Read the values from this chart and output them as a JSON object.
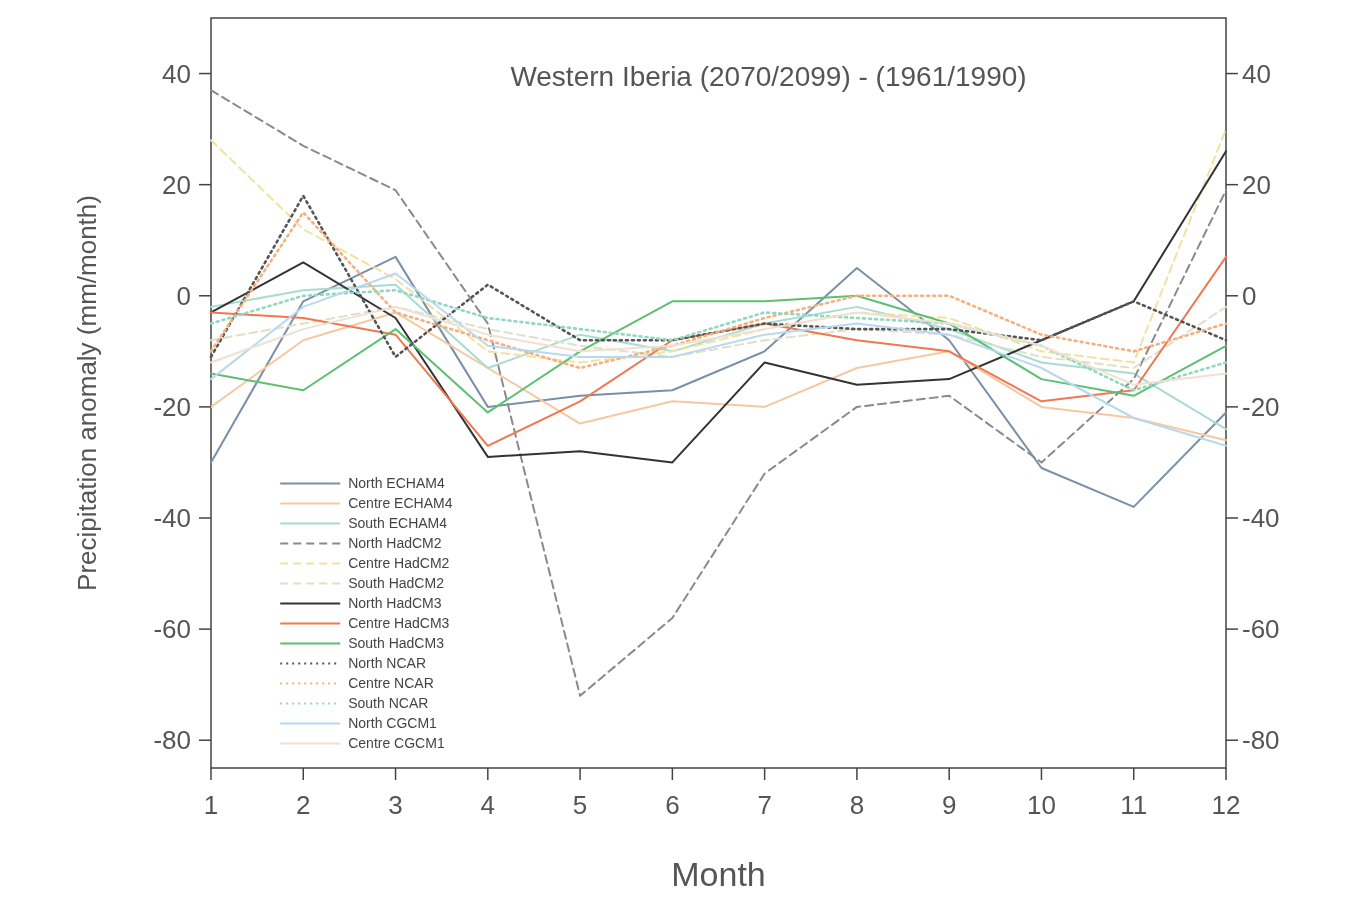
{
  "chart_data": {
    "type": "line",
    "title": "Western Iberia (2070/2099) - (1961/1990)",
    "xlabel": "Month",
    "ylabel": "Precipitation anomaly (mm/month)",
    "x": [
      1,
      2,
      3,
      4,
      5,
      6,
      7,
      8,
      9,
      10,
      11,
      12
    ],
    "xlim": [
      1,
      12
    ],
    "xticks": [
      1,
      2,
      3,
      4,
      5,
      6,
      7,
      8,
      9,
      10,
      11,
      12
    ],
    "ylim": [
      -85,
      50
    ],
    "yticks": [
      -80,
      -60,
      -40,
      -20,
      0,
      20,
      40
    ],
    "y2lim": [
      -85,
      50
    ],
    "y2ticks": [
      -80,
      -60,
      -40,
      -20,
      0,
      20,
      40
    ],
    "grid": false,
    "legend": "bottom left",
    "marker": "none",
    "series": [
      {
        "name": "North ECHAM4",
        "color": "#7a8fa8",
        "line_style": "solid",
        "values": [
          -30,
          -1,
          7,
          -20,
          -18,
          -17,
          -10,
          5,
          -8,
          -31,
          -38,
          -21
        ]
      },
      {
        "name": "Centre ECHAM4",
        "color": "#f5c9a0",
        "line_style": "solid",
        "values": [
          -20,
          -8,
          -3,
          -13,
          -23,
          -19,
          -20,
          -13,
          -10,
          -20,
          -22,
          -26
        ]
      },
      {
        "name": "South ECHAM4",
        "color": "#a8dcd0",
        "line_style": "solid",
        "values": [
          -2,
          1,
          2,
          -13,
          -7,
          -10,
          -5,
          -2,
          -6,
          -12,
          -14,
          -24
        ]
      },
      {
        "name": "North HadCM2",
        "color": "#8a8a8a",
        "line_style": "dashed",
        "values": [
          37,
          27,
          19,
          -5,
          -72,
          -58,
          -32,
          -20,
          -18,
          -30,
          -15,
          19
        ]
      },
      {
        "name": "Centre HadCM2",
        "color": "#efe3a0",
        "line_style": "dashed",
        "values": [
          28,
          12,
          3,
          -10,
          -12,
          -10,
          -6,
          -3,
          -4,
          -10,
          -12,
          30
        ]
      },
      {
        "name": "South HadCM2",
        "color": "#e0e0c8",
        "line_style": "dashed",
        "values": [
          -8,
          -5,
          -2,
          -6,
          -9,
          -11,
          -8,
          -6,
          -7,
          -11,
          -13,
          -2
        ]
      },
      {
        "name": "North HadCM3",
        "color": "#333333",
        "line_style": "solid",
        "values": [
          -3,
          6,
          -4,
          -29,
          -28,
          -30,
          -12,
          -16,
          -15,
          -8,
          -1,
          26
        ]
      },
      {
        "name": "Centre HadCM3",
        "color": "#f07850",
        "line_style": "solid",
        "values": [
          -3,
          -4,
          -7,
          -27,
          -19,
          -8,
          -5,
          -8,
          -10,
          -19,
          -17,
          7
        ]
      },
      {
        "name": "South HadCM3",
        "color": "#5cc070",
        "line_style": "solid",
        "values": [
          -14,
          -17,
          -6,
          -21,
          -10,
          -1,
          -1,
          0,
          -5,
          -15,
          -18,
          -9
        ]
      },
      {
        "name": "North NCAR",
        "color": "#555555",
        "line_style": "dotted",
        "values": [
          -11,
          18,
          -11,
          2,
          -8,
          -8,
          -5,
          -6,
          -6,
          -8,
          -1,
          -8
        ]
      },
      {
        "name": "Centre NCAR",
        "color": "#f5b080",
        "line_style": "dotted",
        "values": [
          -10,
          15,
          -3,
          -8,
          -13,
          -9,
          -4,
          0,
          0,
          -7,
          -10,
          -5
        ]
      },
      {
        "name": "South NCAR",
        "color": "#90d8c0",
        "line_style": "dotted",
        "values": [
          -5,
          0,
          1,
          -4,
          -6,
          -8,
          -3,
          -4,
          -5,
          -9,
          -17,
          -12
        ]
      },
      {
        "name": "North CGCM1",
        "color": "#b8d8f0",
        "line_style": "solid",
        "values": [
          -15,
          -2,
          4,
          -9,
          -11,
          -11,
          -7,
          -5,
          -7,
          -13,
          -22,
          -27
        ]
      },
      {
        "name": "Centre CGCM1",
        "color": "#f0e0d0",
        "line_style": "solid",
        "values": [
          -12,
          -6,
          -2,
          -7,
          -10,
          -9,
          -6,
          -3,
          -5,
          -9,
          -16,
          -14
        ]
      }
    ]
  }
}
